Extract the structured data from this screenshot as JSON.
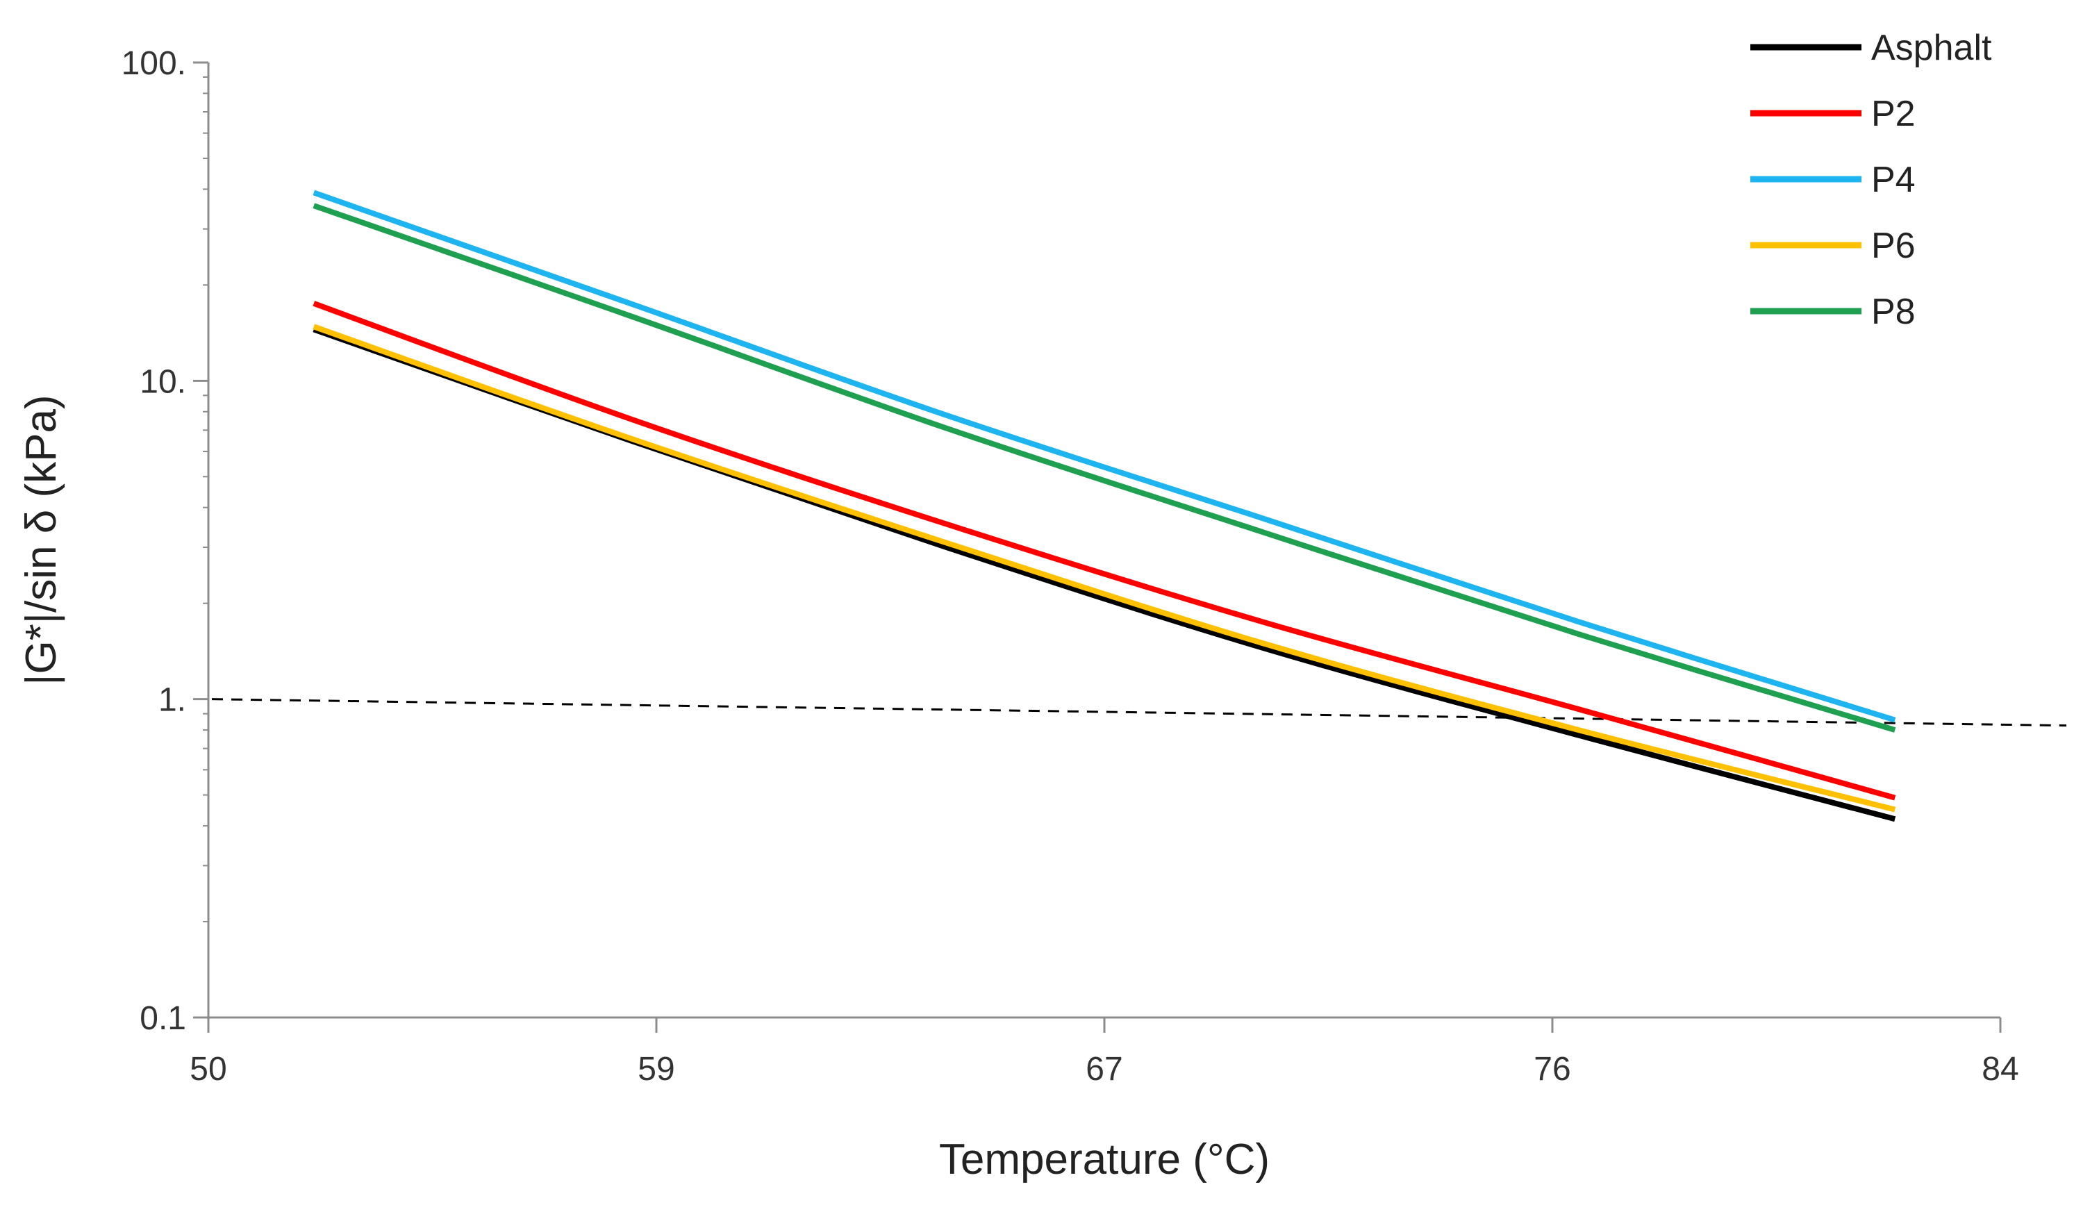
{
  "chart_data": {
    "type": "line",
    "title": "",
    "xlabel": "Temperature (°C)",
    "ylabel": "|G*|/sin δ  (kPa)",
    "y_scale": "log",
    "xlim": [
      50,
      84
    ],
    "ylim": [
      0.1,
      100
    ],
    "x_ticks": [
      {
        "value": 50,
        "label": "50"
      },
      {
        "value": 58.5,
        "label": "59"
      },
      {
        "value": 67,
        "label": "67"
      },
      {
        "value": 75.5,
        "label": "76"
      },
      {
        "value": 84,
        "label": "84"
      }
    ],
    "y_ticks": [
      {
        "value": 0.1,
        "label": "0.1"
      },
      {
        "value": 1,
        "label": "1."
      },
      {
        "value": 10,
        "label": "10."
      },
      {
        "value": 100,
        "label": "100."
      }
    ],
    "grid": false,
    "legend_position": "top-right",
    "series": [
      {
        "name": "Asphalt",
        "color": "#000000",
        "points": [
          [
            52,
            14.5
          ],
          [
            58,
            6.5
          ],
          [
            64,
            3.0
          ],
          [
            70,
            1.45
          ],
          [
            76,
            0.77
          ],
          [
            82,
            0.42
          ]
        ]
      },
      {
        "name": "P2",
        "color": "#ff0000",
        "points": [
          [
            52,
            17.5
          ],
          [
            58,
            7.6
          ],
          [
            64,
            3.55
          ],
          [
            70,
            1.75
          ],
          [
            76,
            0.93
          ],
          [
            82,
            0.49
          ]
        ]
      },
      {
        "name": "P4",
        "color": "#1eb4f0",
        "points": [
          [
            52,
            39
          ],
          [
            58,
            17.5
          ],
          [
            64,
            7.8
          ],
          [
            70,
            3.7
          ],
          [
            76,
            1.75
          ],
          [
            82,
            0.86
          ]
        ]
      },
      {
        "name": "P6",
        "color": "#ffc000",
        "points": [
          [
            52,
            14.8
          ],
          [
            58,
            6.6
          ],
          [
            64,
            3.1
          ],
          [
            70,
            1.5
          ],
          [
            76,
            0.8
          ],
          [
            82,
            0.45
          ]
        ]
      },
      {
        "name": "P8",
        "color": "#1ea050",
        "points": [
          [
            52,
            35.5
          ],
          [
            58,
            16.0
          ],
          [
            64,
            7.1
          ],
          [
            70,
            3.35
          ],
          [
            76,
            1.6
          ],
          [
            82,
            0.8
          ]
        ]
      }
    ],
    "reference_line": {
      "y": 1,
      "style": "dashed",
      "color": "#000000"
    }
  }
}
